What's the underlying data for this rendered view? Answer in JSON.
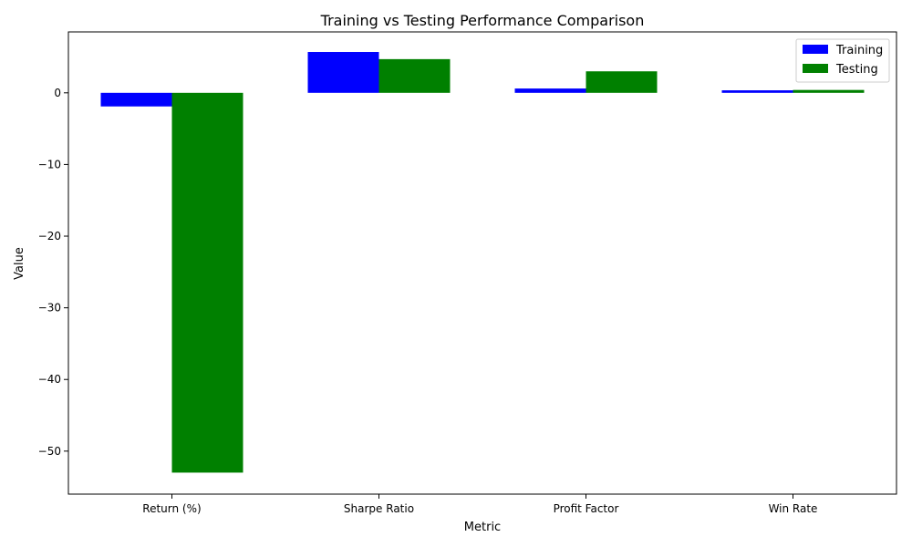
{
  "chart_data": {
    "type": "bar",
    "title": "Training vs Testing Performance Comparison",
    "xlabel": "Metric",
    "ylabel": "Value",
    "categories": [
      "Return (%)",
      "Sharpe Ratio",
      "Profit Factor",
      "Win Rate"
    ],
    "series": [
      {
        "name": "Training",
        "color": "#0000ff",
        "values": [
          -1.9,
          5.7,
          0.6,
          0.35
        ]
      },
      {
        "name": "Testing",
        "color": "#008000",
        "values": [
          -53.0,
          4.7,
          3.0,
          0.4
        ]
      }
    ],
    "ylim": [
      -56,
      8.5
    ],
    "yticks": [
      0,
      -10,
      -20,
      -30,
      -40,
      -50
    ],
    "ytick_labels": [
      "0",
      "−10",
      "−20",
      "−30",
      "−40",
      "−50"
    ],
    "grid": false,
    "legend_position": "top-right"
  }
}
